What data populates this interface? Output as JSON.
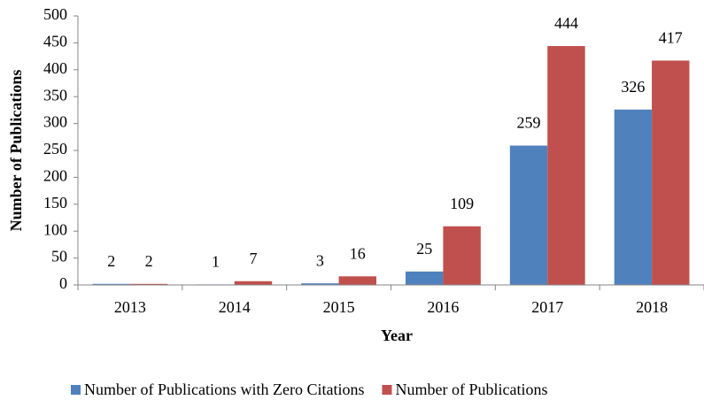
{
  "chart_data": {
    "type": "bar",
    "x_label": "Year",
    "y_label": "Number of Publications",
    "categories": [
      "2013",
      "2014",
      "2015",
      "2016",
      "2017",
      "2018"
    ],
    "series": [
      {
        "name": "Number of Publications with Zero Citations",
        "color": "#4f81bd",
        "values": [
          2,
          1,
          3,
          25,
          259,
          326
        ]
      },
      {
        "name": "Number of Publications",
        "color": "#c0504d",
        "values": [
          2,
          7,
          16,
          109,
          444,
          417
        ]
      }
    ],
    "ylim": [
      0,
      500
    ],
    "yticks": [
      0,
      50,
      100,
      150,
      200,
      250,
      300,
      350,
      400,
      450,
      500
    ],
    "grid": false,
    "legend": "bottom"
  }
}
